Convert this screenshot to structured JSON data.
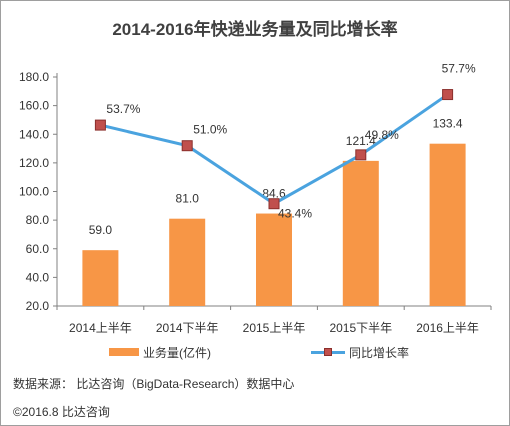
{
  "chart_data": {
    "type": "bar+line",
    "title": "2014-2016年快递业务量及同比增长率",
    "categories": [
      "2014上半年",
      "2014下半年",
      "2015上半年",
      "2015下半年",
      "2016上半年"
    ],
    "series": [
      {
        "name": "业务量(亿件)",
        "type": "bar",
        "values": [
          59.0,
          81.0,
          84.6,
          121.4,
          133.4
        ],
        "labels": [
          "59.0",
          "81.0",
          "84.6",
          "121.4",
          "133.4"
        ],
        "color": "#f79646"
      },
      {
        "name": "同比增长率",
        "type": "line",
        "values": [
          53.7,
          51.0,
          43.4,
          49.8,
          57.7
        ],
        "labels": [
          "53.7%",
          "51.0%",
          "43.4%",
          "49.8%",
          "57.7%"
        ],
        "line_color": "#4aa3df",
        "marker_color": "#c0504d"
      }
    ],
    "y_axis": {
      "min": 20,
      "max": 180,
      "step": 20,
      "tick_labels": [
        "20.0",
        "40.0",
        "60.0",
        "80.0",
        "100.0",
        "120.0",
        "140.0",
        "160.0",
        "180.0"
      ]
    },
    "line_y_range": [
      30,
      60
    ],
    "grid": false,
    "legend_position": "bottom"
  },
  "footer": {
    "source": "数据来源：  比达咨询（BigData-Research）数据中心",
    "copyright": "©2016.8  比达咨询"
  }
}
